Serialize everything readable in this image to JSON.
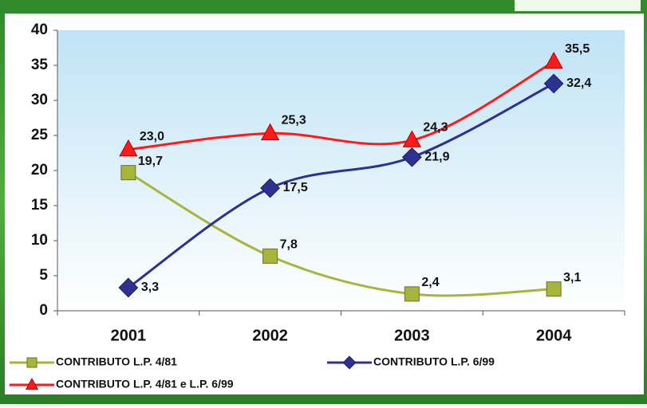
{
  "chart_data": {
    "type": "line",
    "categories": [
      "2001",
      "2002",
      "2003",
      "2004"
    ],
    "series": [
      {
        "name": "CONTRIBUTO L.P. 4/81",
        "color": "#a8b53c",
        "marker": "square",
        "values": [
          19.7,
          7.8,
          2.4,
          3.1
        ],
        "value_labels": [
          "19,7",
          "7,8",
          "2,4",
          "3,1"
        ]
      },
      {
        "name": "CONTRIBUTO L.P. 6/99",
        "color": "#2e318f",
        "marker": "diamond",
        "values": [
          3.3,
          17.5,
          21.9,
          32.4
        ],
        "value_labels": [
          "3,3",
          "17,5",
          "21,9",
          "32,4"
        ]
      },
      {
        "name": "CONTRIBUTO L.P. 4/81 e L.P. 6/99",
        "color": "#ff1a1a",
        "marker": "triangle",
        "values": [
          23.0,
          25.3,
          24.3,
          35.5
        ],
        "value_labels": [
          "23,0",
          "25,3",
          "24,3",
          "35,5"
        ]
      }
    ],
    "ylim": [
      0,
      40
    ],
    "yticks": [
      0,
      5,
      10,
      15,
      20,
      25,
      30,
      35,
      40
    ],
    "grid": false,
    "smooth": true
  }
}
